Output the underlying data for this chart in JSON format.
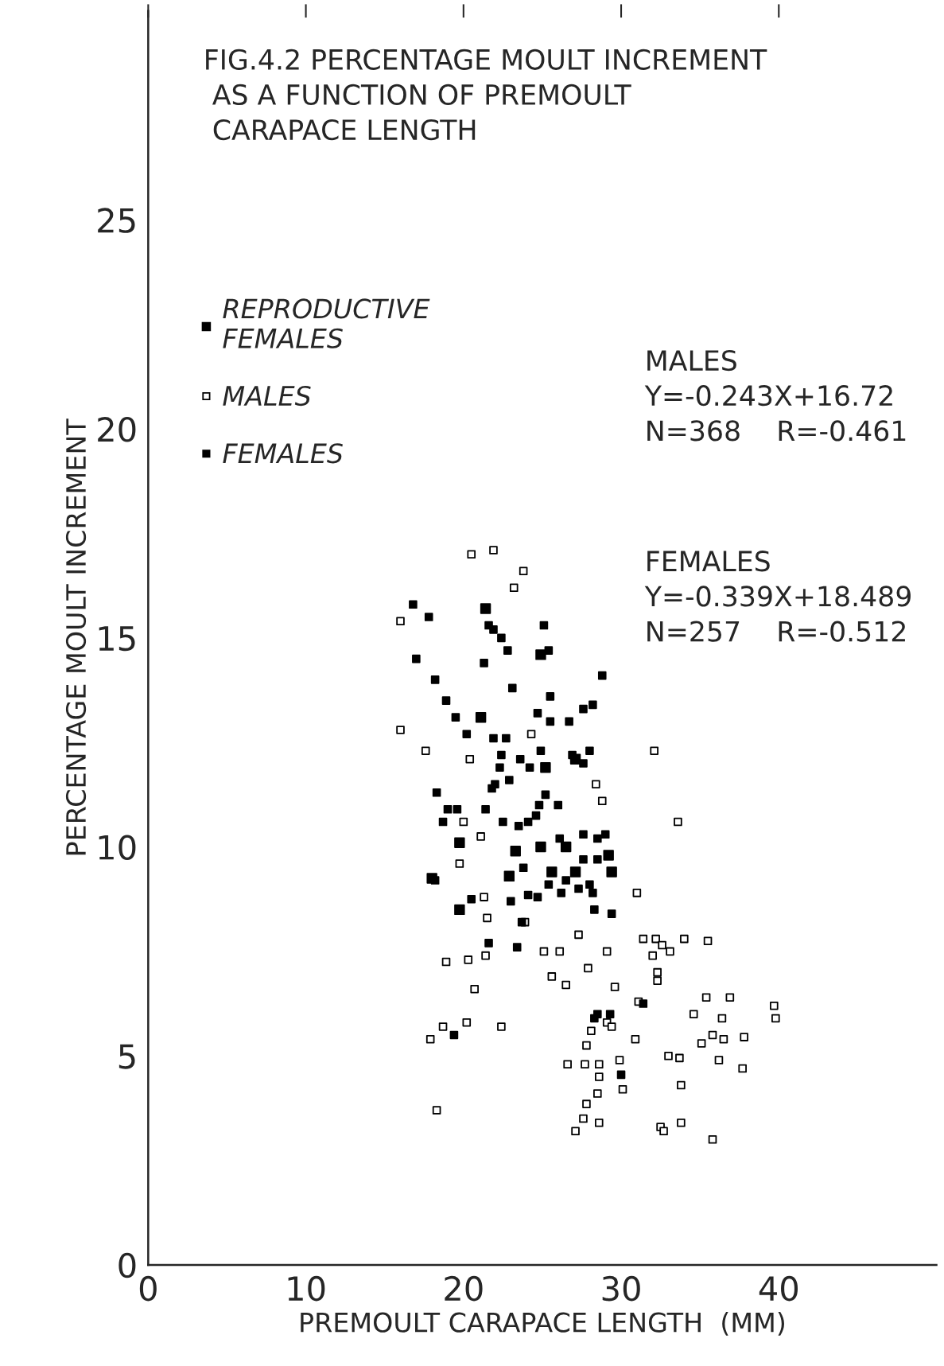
{
  "chart_data": {
    "type": "scatter",
    "title": "FIG.4.2 PERCENTAGE MOULT INCREMENT\n AS A FUNCTION OF PREMOULT\n CARAPACE LENGTH",
    "xlabel": "PREMOULT CARAPACE LENGTH  (MM)",
    "ylabel": "PERCENTAGE MOULT INCREMENT",
    "annotations": [
      "MALES\nY=-0.243X+16.72\nN=368    R=-0.461",
      "FEMALES\nY=-0.339X+18.489\nN=257    R=-0.512"
    ],
    "xlim": [
      0,
      50
    ],
    "ylim": [
      0,
      30
    ],
    "xticks": [
      0,
      10,
      20,
      30,
      40
    ],
    "yticks": [
      0,
      5,
      10,
      15,
      20,
      25
    ],
    "grid": false,
    "legend": "left",
    "marker": "square",
    "series": [
      {
        "name": "REPRODUCTIVE\nFEMALES",
        "color": "#000000",
        "x": [
          19.75,
          23.3,
          24.9,
          26.5,
          22.9,
          25.6,
          29.2,
          29.4,
          27.1,
          18.0,
          19.75,
          21.4,
          24.9,
          21.1,
          25.2,
          27.1
        ],
        "values": [
          10.1,
          9.9,
          10.0,
          10.0,
          9.3,
          9.4,
          9.8,
          9.4,
          9.4,
          9.25,
          8.5,
          15.7,
          14.6,
          13.1,
          11.9,
          12.1
        ]
      },
      {
        "name": "MALES",
        "color": "#000000",
        "x": [
          20.5,
          21.9,
          23.2,
          23.8,
          16.0,
          16.0,
          17.6,
          20.4,
          24.3,
          28.4,
          28.8,
          19.75,
          20.0,
          21.1,
          31.0,
          21.3,
          21.5,
          23.9,
          21.4,
          20.3,
          18.9,
          25.1,
          26.1,
          27.3,
          27.9,
          29.1,
          25.6,
          26.5,
          20.7,
          18.7,
          20.2,
          22.4,
          17.9,
          18.3,
          29.6,
          31.1,
          31.4,
          32.2,
          32.6,
          32.0,
          33.1,
          34.0,
          35.5,
          32.3,
          32.3,
          35.4,
          36.9,
          36.4,
          34.6,
          35.8,
          35.1,
          36.5,
          37.8,
          39.7,
          39.8,
          33.0,
          33.7,
          33.8,
          33.8,
          32.5,
          32.7,
          35.8,
          36.2,
          37.7,
          29.1,
          28.1,
          29.4,
          27.8,
          30.9,
          26.6,
          27.7,
          28.6,
          29.9,
          30.1,
          28.6,
          28.5,
          27.8,
          27.6,
          27.1,
          28.6,
          33.6,
          32.1
        ],
        "values": [
          17.0,
          17.1,
          16.2,
          16.6,
          15.4,
          12.8,
          12.3,
          12.1,
          12.7,
          11.5,
          11.1,
          9.6,
          10.6,
          10.25,
          8.9,
          8.8,
          8.3,
          8.2,
          7.4,
          7.3,
          7.25,
          7.5,
          7.5,
          7.9,
          7.1,
          7.5,
          6.9,
          6.7,
          6.6,
          5.7,
          5.8,
          5.7,
          5.4,
          3.7,
          6.65,
          6.3,
          7.8,
          7.8,
          7.65,
          7.4,
          7.5,
          7.8,
          7.75,
          7.0,
          6.8,
          6.4,
          6.4,
          5.9,
          6.0,
          5.5,
          5.3,
          5.4,
          5.45,
          6.2,
          5.9,
          5.0,
          4.95,
          4.3,
          3.4,
          3.3,
          3.2,
          3.0,
          4.9,
          4.7,
          5.8,
          5.6,
          5.7,
          5.25,
          5.4,
          4.8,
          4.8,
          4.8,
          4.9,
          4.2,
          4.5,
          4.1,
          3.85,
          3.5,
          3.2,
          3.4,
          10.6,
          12.3
        ]
      },
      {
        "name": "FEMALES",
        "color": "#000000",
        "x": [
          16.8,
          17.8,
          17.0,
          18.2,
          18.9,
          19.5,
          20.2,
          21.6,
          21.9,
          22.4,
          22.8,
          21.3,
          23.1,
          25.1,
          25.4,
          25.5,
          25.5,
          24.7,
          26.7,
          27.6,
          28.2,
          28.8,
          24.9,
          24.2,
          23.6,
          22.3,
          22.0,
          22.9,
          22.4,
          21.9,
          22.7,
          18.3,
          19.0,
          18.7,
          19.6,
          21.4,
          21.8,
          22.5,
          23.5,
          24.1,
          24.6,
          24.8,
          26.1,
          25.2,
          26.0,
          26.9,
          27.6,
          28.0,
          27.6,
          28.5,
          29.0,
          28.5,
          27.6,
          26.5,
          25.4,
          26.2,
          27.3,
          28.0,
          28.2,
          28.3,
          29.4,
          18.2,
          20.5,
          23.0,
          23.8,
          24.1,
          24.7,
          23.7,
          21.6,
          23.4,
          19.4,
          31.4,
          28.5,
          29.3,
          28.3,
          30.0
        ],
        "values": [
          15.8,
          15.5,
          14.5,
          14.0,
          13.5,
          13.1,
          12.7,
          15.3,
          15.2,
          15.0,
          14.7,
          14.4,
          13.8,
          15.3,
          14.7,
          13.0,
          13.6,
          13.2,
          13.0,
          13.3,
          13.4,
          14.1,
          12.3,
          11.9,
          12.1,
          11.9,
          11.5,
          11.6,
          12.2,
          12.6,
          12.6,
          11.3,
          10.9,
          10.6,
          10.9,
          10.9,
          11.4,
          10.6,
          10.5,
          10.6,
          10.75,
          11.0,
          10.2,
          11.25,
          11.0,
          12.2,
          12.0,
          12.3,
          10.3,
          10.2,
          10.3,
          9.7,
          9.7,
          9.2,
          9.1,
          8.9,
          9.0,
          9.1,
          8.9,
          8.5,
          8.4,
          9.2,
          8.75,
          8.7,
          9.5,
          8.85,
          8.8,
          8.2,
          7.7,
          7.6,
          5.5,
          6.25,
          6.0,
          6.0,
          5.9,
          4.55
        ]
      }
    ]
  }
}
